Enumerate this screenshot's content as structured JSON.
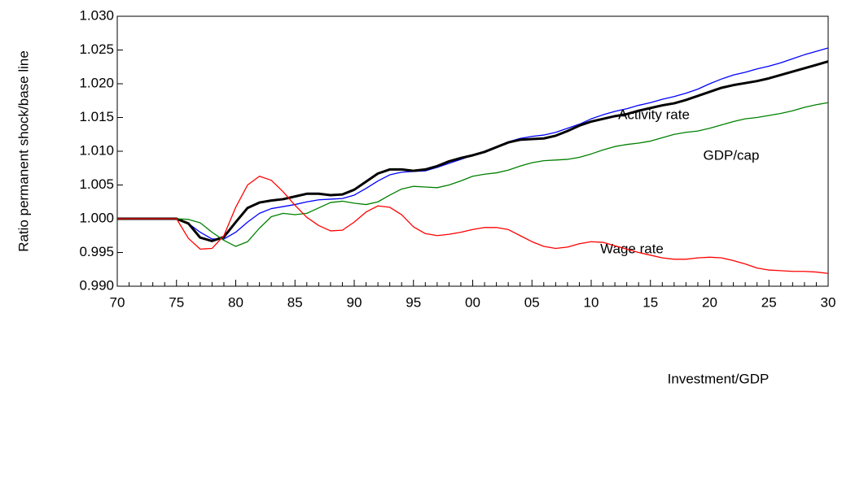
{
  "chart_data": {
    "type": "line",
    "y_label": "Ratio permanent shock/base line",
    "categories": [
      "70",
      null,
      null,
      null,
      null,
      "75",
      null,
      null,
      null,
      null,
      "80",
      null,
      null,
      null,
      null,
      "85",
      null,
      null,
      null,
      null,
      "90",
      null,
      null,
      null,
      null,
      "95",
      null,
      null,
      null,
      null,
      "00",
      null,
      null,
      null,
      null,
      "05",
      null,
      null,
      null,
      null,
      "10",
      null,
      null,
      null,
      null,
      "15",
      null,
      null,
      null,
      null,
      "20",
      null,
      null,
      null,
      null,
      "25",
      null,
      null,
      null,
      null,
      "30"
    ],
    "ylim": [
      0.99,
      1.03
    ],
    "yticks": [
      {
        "value": 0.99,
        "label": "0.990"
      },
      0.995,
      {
        "value": 1.0,
        "label": "1.000"
      },
      1.005,
      {
        "value": 1.01,
        "label": "1.010"
      },
      1.015,
      {
        "value": 1.02,
        "label": "1.020"
      },
      1.025,
      {
        "value": 1.03,
        "label": "1.030"
      }
    ],
    "series": [
      {
        "name": "Activity rate",
        "color": "#0000ff",
        "values": [
          1,
          1,
          1,
          1,
          1,
          1,
          0.9993,
          0.998,
          0.997,
          0.997,
          0.998,
          0.9995,
          1.0008,
          1.0015,
          1.0018,
          1.0021,
          1.0025,
          1.0028,
          1.0029,
          1.003,
          1.0035,
          1.0045,
          1.0056,
          1.0065,
          1.0069,
          1.007,
          1.0071,
          1.0076,
          1.0082,
          1.0088,
          1.0094,
          1.01,
          1.0107,
          1.0114,
          1.0119,
          1.0122,
          1.0124,
          1.0128,
          1.0134,
          1.014,
          1.0148,
          1.0154,
          1.0159,
          1.0163,
          1.0168,
          1.0172,
          1.0177,
          1.0181,
          1.0186,
          1.0192,
          1.02,
          1.0207,
          1.0213,
          1.0217,
          1.0222,
          1.0226,
          1.0231,
          1.0237,
          1.0243,
          1.0248,
          1.0253
        ]
      },
      {
        "name": "GDP/cap",
        "color": "#000000",
        "values": [
          1,
          1,
          1,
          1,
          1,
          1,
          0.9993,
          0.9972,
          0.9967,
          0.9973,
          0.9995,
          1.0016,
          1.0024,
          1.0027,
          1.0029,
          1.0033,
          1.0037,
          1.0037,
          1.0035,
          1.0036,
          1.0043,
          1.0055,
          1.0067,
          1.0073,
          1.0073,
          1.0071,
          1.0073,
          1.0078,
          1.0085,
          1.009,
          1.0094,
          1.0099,
          1.0106,
          1.0113,
          1.0117,
          1.0118,
          1.0119,
          1.0123,
          1.013,
          1.0138,
          1.0144,
          1.0148,
          1.0152,
          1.0155,
          1.016,
          1.0164,
          1.0168,
          1.0171,
          1.0176,
          1.0182,
          1.0188,
          1.0194,
          1.0198,
          1.0201,
          1.0204,
          1.0208,
          1.0213,
          1.0218,
          1.0223,
          1.0228,
          1.0233
        ]
      },
      {
        "name": "Wage rate",
        "color": "#008000",
        "values": [
          1,
          1,
          1,
          1,
          1,
          1,
          0.9999,
          0.9994,
          0.998,
          0.9968,
          0.9959,
          0.9966,
          0.9986,
          1.0003,
          1.0008,
          1.0006,
          1.0008,
          1.0016,
          1.0024,
          1.0026,
          1.0023,
          1.0021,
          1.0025,
          1.0035,
          1.0044,
          1.0048,
          1.0047,
          1.0046,
          1.005,
          1.0056,
          1.0063,
          1.0066,
          1.0068,
          1.0072,
          1.0078,
          1.0083,
          1.0086,
          1.0087,
          1.0088,
          1.0091,
          1.0096,
          1.0102,
          1.0107,
          1.011,
          1.0112,
          1.0115,
          1.012,
          1.0125,
          1.0128,
          1.013,
          1.0134,
          1.0139,
          1.0144,
          1.0148,
          1.015,
          1.0153,
          1.0156,
          1.016,
          1.0165,
          1.0169,
          1.0172
        ]
      },
      {
        "name": "Investment/GDP",
        "color": "#ff0000",
        "values": [
          1,
          1,
          1,
          1,
          1,
          1,
          0.9971,
          0.9955,
          0.9956,
          0.9975,
          1.0017,
          1.005,
          1.0063,
          1.0057,
          1.004,
          1.002,
          1.0002,
          0.999,
          0.9982,
          0.9983,
          0.9995,
          1.001,
          1.0019,
          1.0017,
          1.0006,
          0.9988,
          0.9978,
          0.9975,
          0.9977,
          0.998,
          0.9984,
          0.9987,
          0.9987,
          0.9984,
          0.9975,
          0.9966,
          0.9959,
          0.9956,
          0.9958,
          0.9963,
          0.9966,
          0.9965,
          0.996,
          0.9955,
          0.995,
          0.9946,
          0.9942,
          0.994,
          0.994,
          0.9942,
          0.9943,
          0.9942,
          0.9938,
          0.9933,
          0.9927,
          0.9924,
          0.9923,
          0.9922,
          0.9922,
          0.9921,
          0.9919
        ]
      }
    ]
  }
}
